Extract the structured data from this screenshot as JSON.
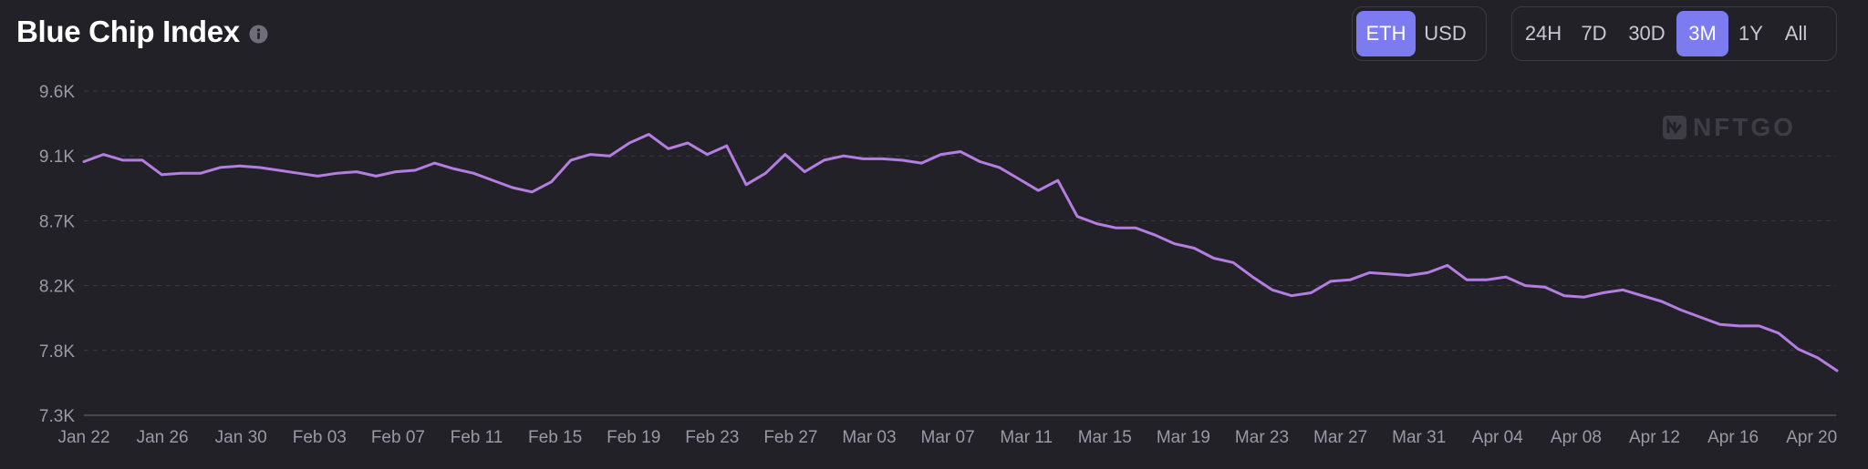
{
  "title": "Blue Chip Index",
  "watermark": "NFTGO",
  "currency_toggle": [
    {
      "label": "ETH",
      "active": true
    },
    {
      "label": "USD",
      "active": false
    }
  ],
  "range_toggle": [
    {
      "label": "24H",
      "active": false
    },
    {
      "label": "7D",
      "active": false
    },
    {
      "label": "30D",
      "active": false
    },
    {
      "label": "3M",
      "active": true
    },
    {
      "label": "1Y",
      "active": false
    },
    {
      "label": "All",
      "active": false
    }
  ],
  "colors": {
    "background": "#222128",
    "line": "#b47ee0",
    "accent": "#7c7cf0",
    "grid": "#3c3b45"
  },
  "chart_data": {
    "type": "line",
    "title": "Blue Chip Index",
    "xlabel": "",
    "ylabel": "",
    "ylim": [
      7.3,
      9.6
    ],
    "yticks": [
      "7.3K",
      "7.8K",
      "8.2K",
      "8.7K",
      "9.1K",
      "9.6K"
    ],
    "ytick_values": [
      7.3,
      7.75,
      8.2,
      8.65,
      9.1,
      9.55
    ],
    "xticks": [
      "Jan 22",
      "Jan 26",
      "Jan 30",
      "Feb 03",
      "Feb 07",
      "Feb 11",
      "Feb 15",
      "Feb 19",
      "Feb 23",
      "Feb 27",
      "Mar 03",
      "Mar 07",
      "Mar 11",
      "Mar 15",
      "Mar 19",
      "Mar 23",
      "Mar 27",
      "Mar 31",
      "Apr 04",
      "Apr 08",
      "Apr 12",
      "Apr 16",
      "Apr 20"
    ],
    "grid": true,
    "legend": "none",
    "series": [
      {
        "values": [
          9.06,
          9.11,
          9.07,
          9.07,
          8.97,
          8.98,
          8.98,
          9.02,
          9.03,
          9.02,
          9.0,
          8.98,
          8.96,
          8.98,
          8.99,
          8.96,
          8.99,
          9.0,
          9.05,
          9.01,
          8.98,
          8.93,
          8.88,
          8.85,
          8.92,
          9.07,
          9.11,
          9.1,
          9.19,
          9.25,
          9.15,
          9.19,
          9.11,
          9.17,
          8.9,
          8.98,
          9.11,
          8.99,
          9.07,
          9.1,
          9.08,
          9.08,
          9.07,
          9.05,
          9.11,
          9.13,
          9.06,
          9.02,
          8.94,
          8.86,
          8.93,
          8.68,
          8.63,
          8.6,
          8.6,
          8.55,
          8.49,
          8.46,
          8.39,
          8.36,
          8.26,
          8.17,
          8.13,
          8.15,
          8.23,
          8.24,
          8.29,
          8.28,
          8.27,
          8.29,
          8.34,
          8.24,
          8.24,
          8.26,
          8.2,
          8.19,
          8.13,
          8.12,
          8.15,
          8.17,
          8.13,
          8.09,
          8.03,
          7.98,
          7.93,
          7.92,
          7.92,
          7.87,
          7.76,
          7.7,
          7.61
        ]
      }
    ]
  }
}
